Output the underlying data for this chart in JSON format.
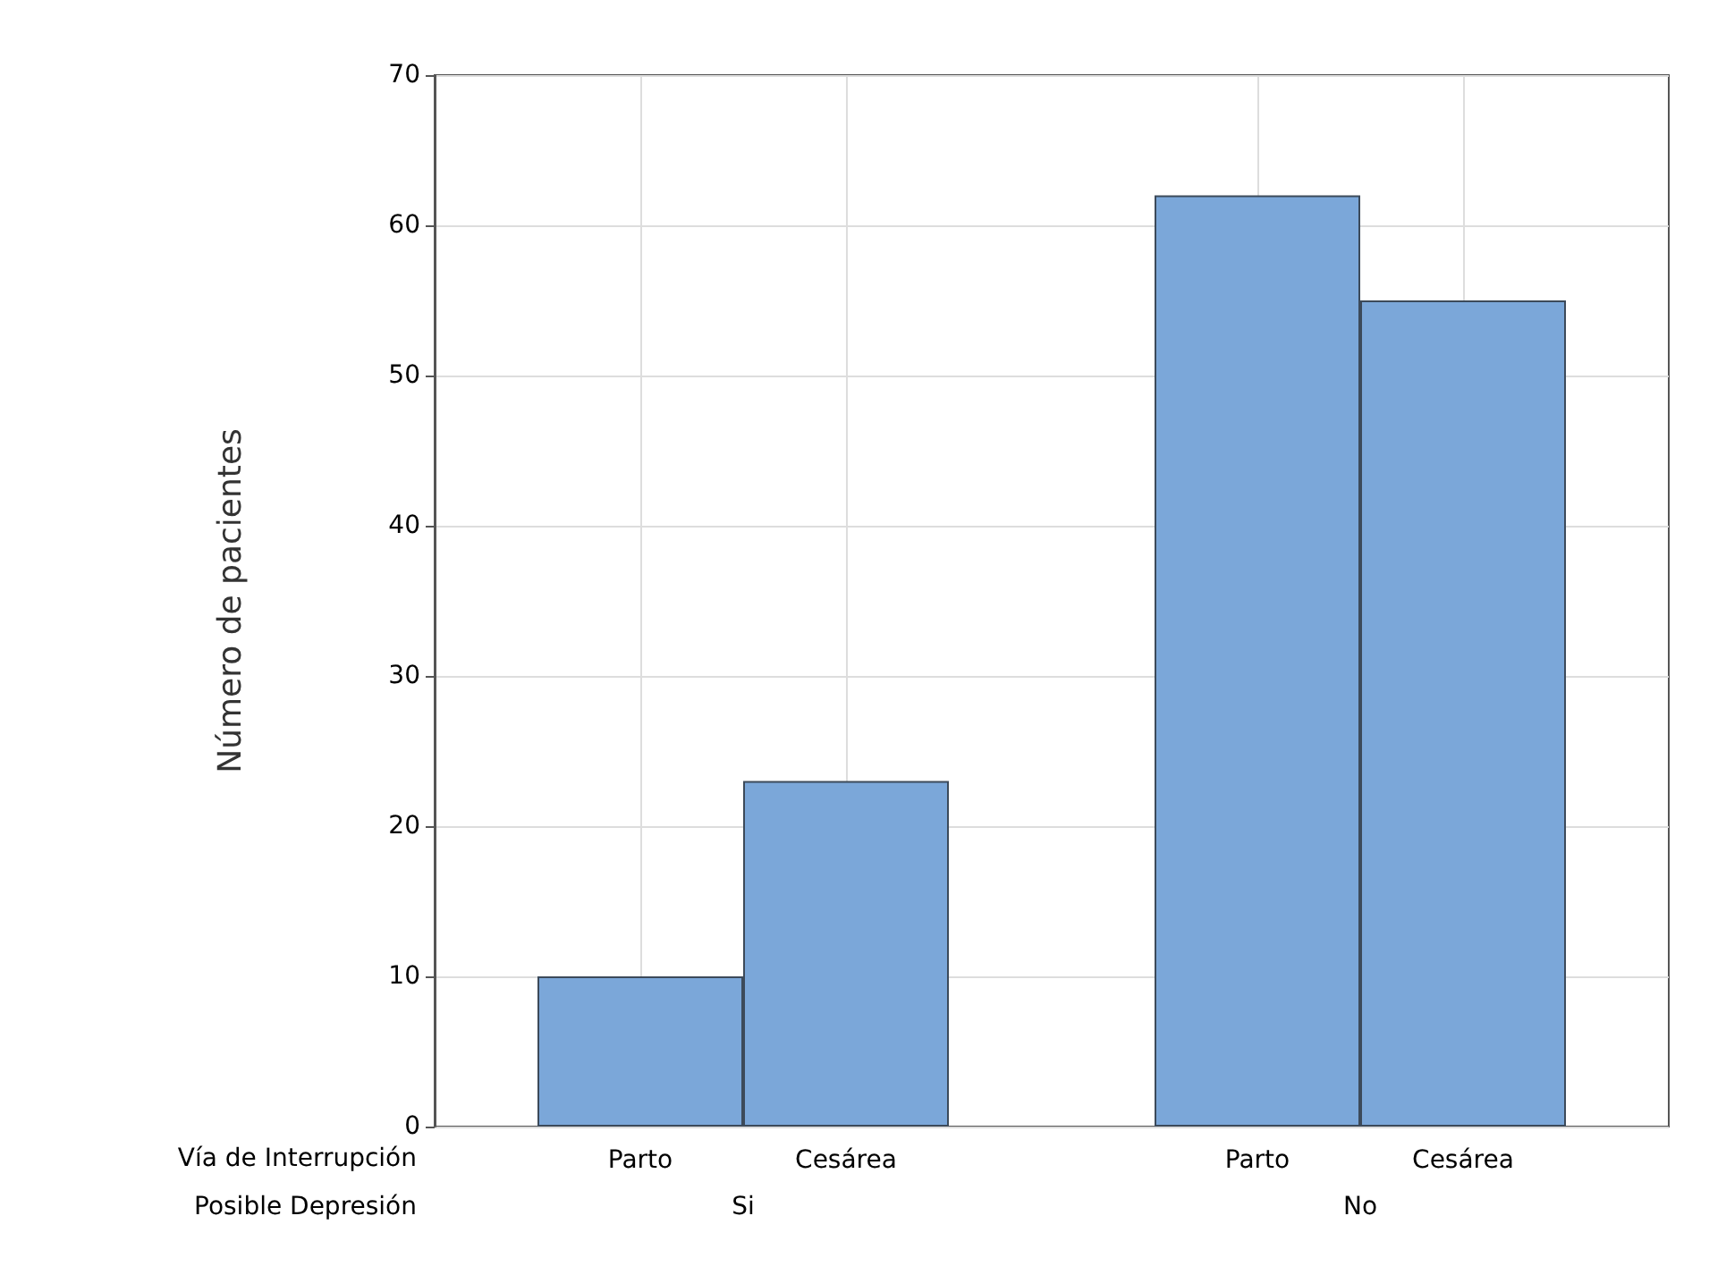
{
  "chart_data": {
    "type": "bar",
    "ylabel": "Número de pacientes",
    "categories": [
      null,
      "Parto",
      "Cesárea",
      null,
      "Parto",
      "Cesárea",
      null
    ],
    "values": [
      null,
      10,
      23,
      null,
      62,
      55,
      null
    ],
    "color": "#7ba7d9",
    "ylim": [
      0,
      70
    ],
    "yticks": [
      0,
      10,
      20,
      30,
      40,
      50,
      60,
      70
    ],
    "grid": true,
    "annotations": [
      "Vía de Interrupción",
      "Posible Depresión",
      "Si",
      "No"
    ]
  }
}
